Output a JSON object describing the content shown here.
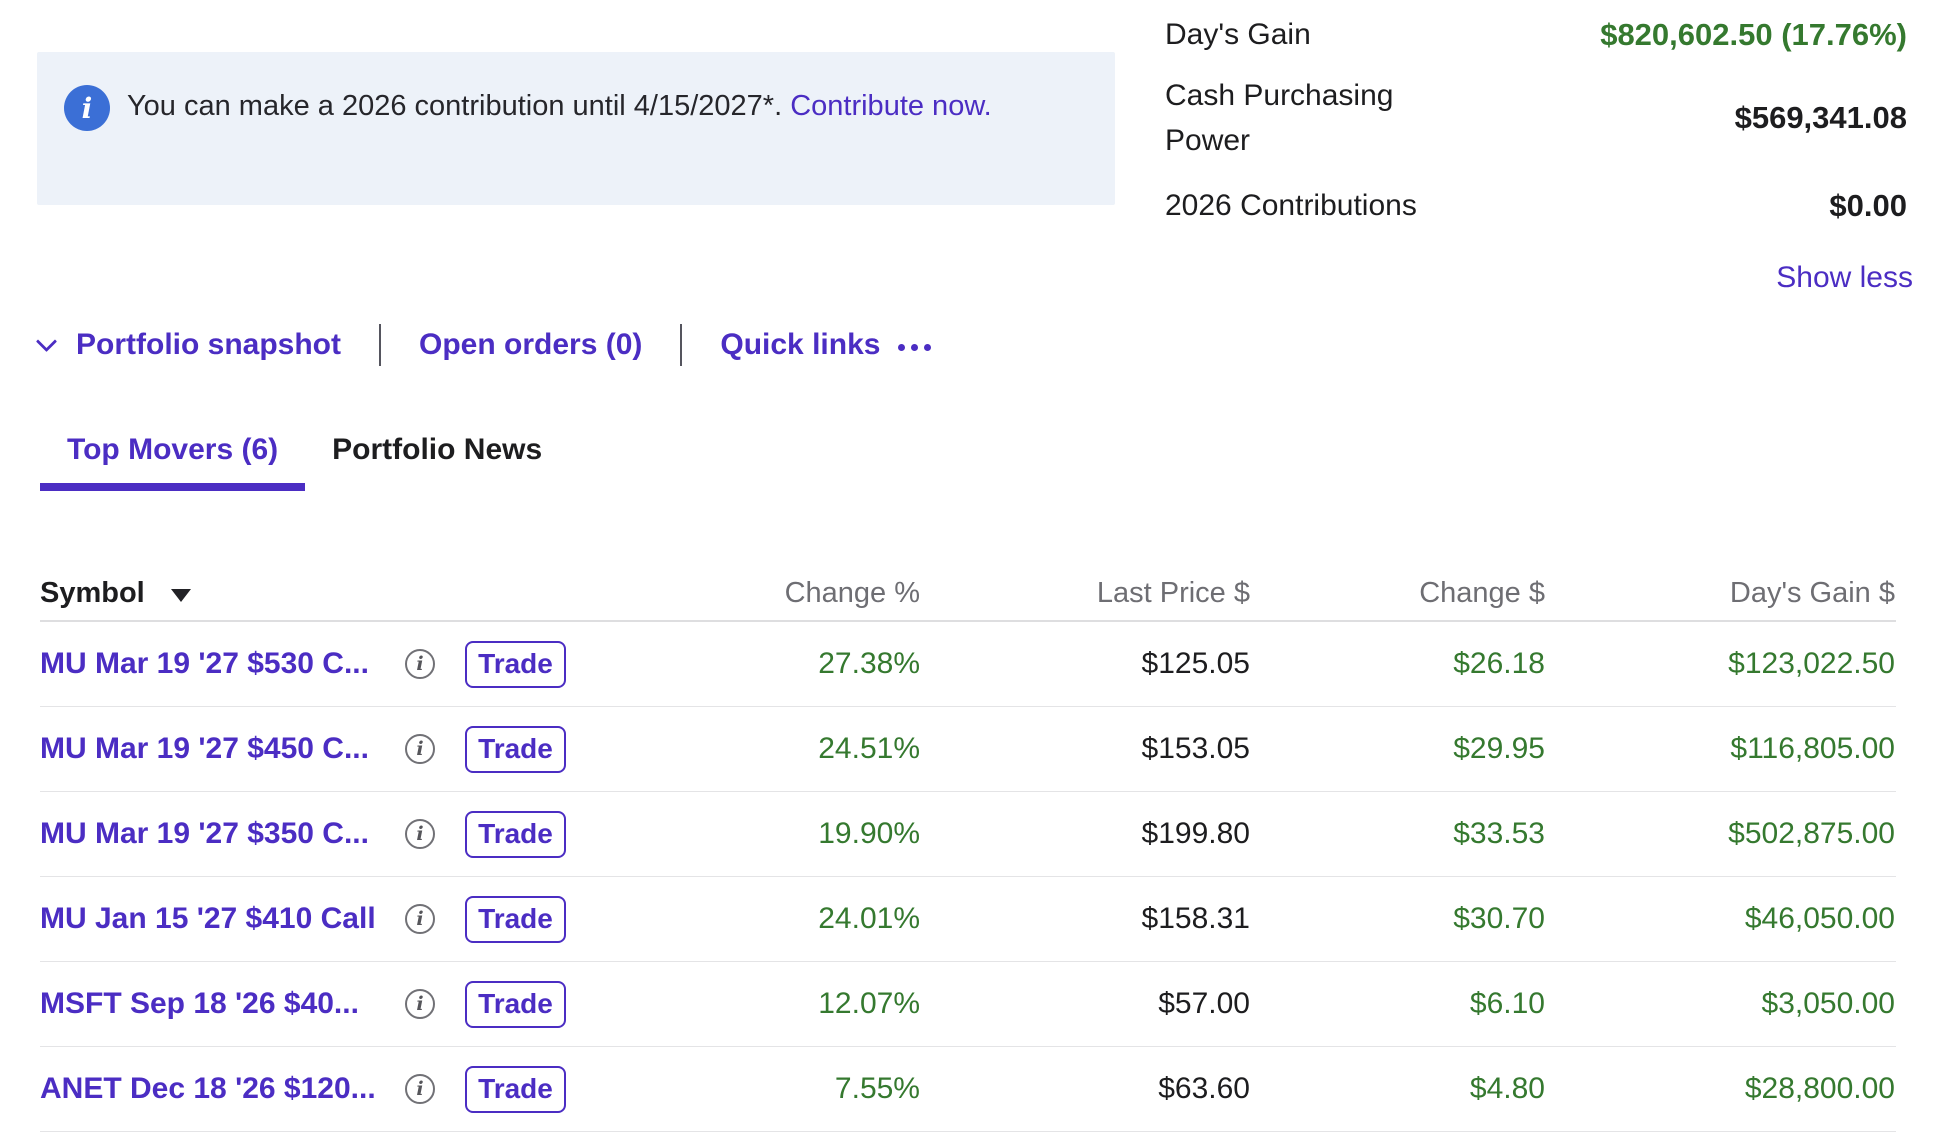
{
  "colors": {
    "accent_purple": "#4b2dc3",
    "positive_green": "#35792f",
    "info_blue": "#3b6fd6",
    "banner_bg": "#edf2f9"
  },
  "icons": {
    "info_glyph": "i"
  },
  "banner": {
    "text": "You can make a 2026 contribution until 4/15/2027*. ",
    "link_label": "Contribute now."
  },
  "summary": {
    "stats": [
      {
        "label": "Day's Gain",
        "value": "$820,602.50 (17.76%)",
        "positive": true
      },
      {
        "label": "Cash Purchasing Power",
        "value": "$569,341.08",
        "positive": false
      },
      {
        "label": "2026 Contributions",
        "value": "$0.00",
        "positive": false
      }
    ],
    "show_less_label": "Show less"
  },
  "nav": {
    "items": [
      {
        "label": "Portfolio snapshot"
      },
      {
        "label": "Open orders (0)"
      },
      {
        "label": "Quick links"
      }
    ]
  },
  "tabs": [
    {
      "label": "Top Movers (6)",
      "active": true
    },
    {
      "label": "Portfolio News",
      "active": false
    }
  ],
  "table": {
    "trade_label": "Trade",
    "columns": [
      "Symbol",
      "Change %",
      "Last Price $",
      "Change $",
      "Day's Gain $"
    ],
    "rows": [
      {
        "symbol": "MU Mar 19 '27 $530 C...",
        "change_pct": "27.38%",
        "last_price": "$125.05",
        "change": "$26.18",
        "days_gain": "$123,022.50"
      },
      {
        "symbol": "MU Mar 19 '27 $450 C...",
        "change_pct": "24.51%",
        "last_price": "$153.05",
        "change": "$29.95",
        "days_gain": "$116,805.00"
      },
      {
        "symbol": "MU Mar 19 '27 $350 C...",
        "change_pct": "19.90%",
        "last_price": "$199.80",
        "change": "$33.53",
        "days_gain": "$502,875.00"
      },
      {
        "symbol": "MU Jan 15 '27 $410 Call",
        "change_pct": "24.01%",
        "last_price": "$158.31",
        "change": "$30.70",
        "days_gain": "$46,050.00"
      },
      {
        "symbol": "MSFT Sep 18 '26 $40...",
        "change_pct": "12.07%",
        "last_price": "$57.00",
        "change": "$6.10",
        "days_gain": "$3,050.00"
      },
      {
        "symbol": "ANET Dec 18 '26 $120...",
        "change_pct": "7.55%",
        "last_price": "$63.60",
        "change": "$4.80",
        "days_gain": "$28,800.00"
      }
    ]
  }
}
